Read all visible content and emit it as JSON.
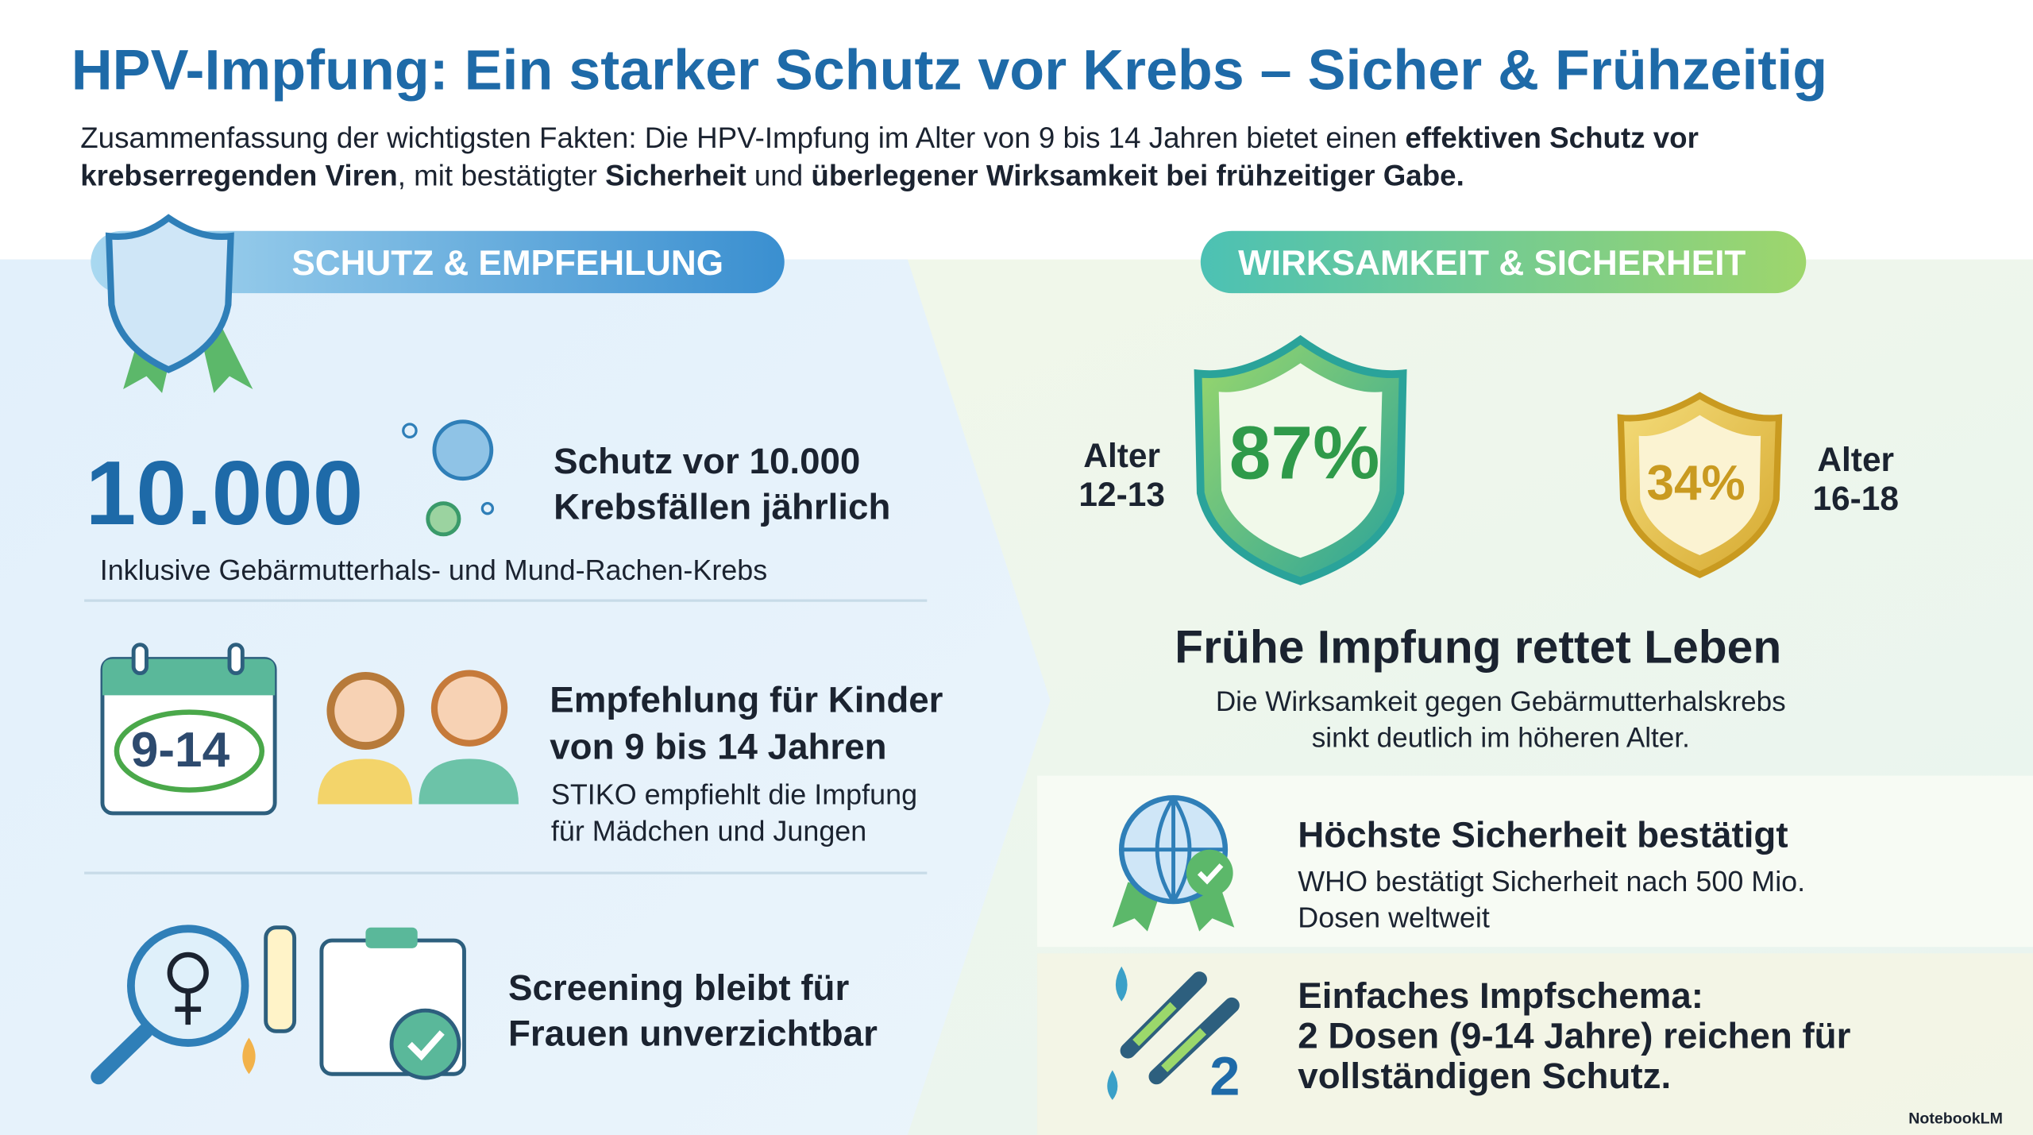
{
  "header": {
    "title": "HPV-Impfung: Ein starker Schutz vor Krebs – Sicher & Frühzeitig",
    "summary": [
      "Zusammenfassung der wichtigsten Fakten: Die HPV-Impfung im Alter von 9 bis 14 Jahren bietet einen ",
      "effektiven Schutz vor krebserregenden Viren",
      ", mit bestätigter ",
      "Sicherheit",
      " und ",
      "überlegener Wirksamkeit bei frühzeitiger Gabe."
    ]
  },
  "left": {
    "heading": "SCHUTZ & EMPFEHLUNG",
    "items": [
      {
        "big_number": "10.000",
        "title_lines": [
          "Schutz vor 10.000",
          "Krebsfällen jährlich"
        ],
        "text_lines": [
          "Inklusive Gebärmutterhals- und Mund-Rachen-Krebs"
        ]
      },
      {
        "calendar_label": "9-14",
        "title_lines": [
          "Empfehlung für Kinder",
          "von 9 bis 14 Jahren"
        ],
        "text_lines": [
          "STIKO empfiehlt die Impfung",
          "für Mädchen und Jungen"
        ]
      },
      {
        "title_lines": [
          "Screening bleibt für",
          "Frauen unverzichtbar"
        ]
      }
    ]
  },
  "right": {
    "heading": "WIRKSAMKEIT & SICHERHEIT",
    "efficacy": [
      {
        "age_lines": [
          "Alter",
          "12-13"
        ],
        "value": "87%"
      },
      {
        "age_lines": [
          "Alter",
          "16-18"
        ],
        "value": "34%"
      }
    ],
    "headline": "Frühe Impfung rettet Leben",
    "text_lines": [
      "Die Wirksamkeit gegen Gebärmutterhalskrebs",
      "sinkt deutlich im höheren Alter."
    ],
    "safety": {
      "title": "Höchste Sicherheit bestätigt",
      "text_lines": [
        "WHO bestätigt Sicherheit nach 500 Mio.",
        "Dosen weltweit"
      ]
    },
    "schedule": {
      "icon_number": "2",
      "title_lines": [
        "Einfaches Impfschema:",
        "2 Dosen (9-14 Jahre) reichen für",
        "vollständigen Schutz."
      ]
    }
  },
  "footer": {
    "brand": "NotebookLM"
  }
}
